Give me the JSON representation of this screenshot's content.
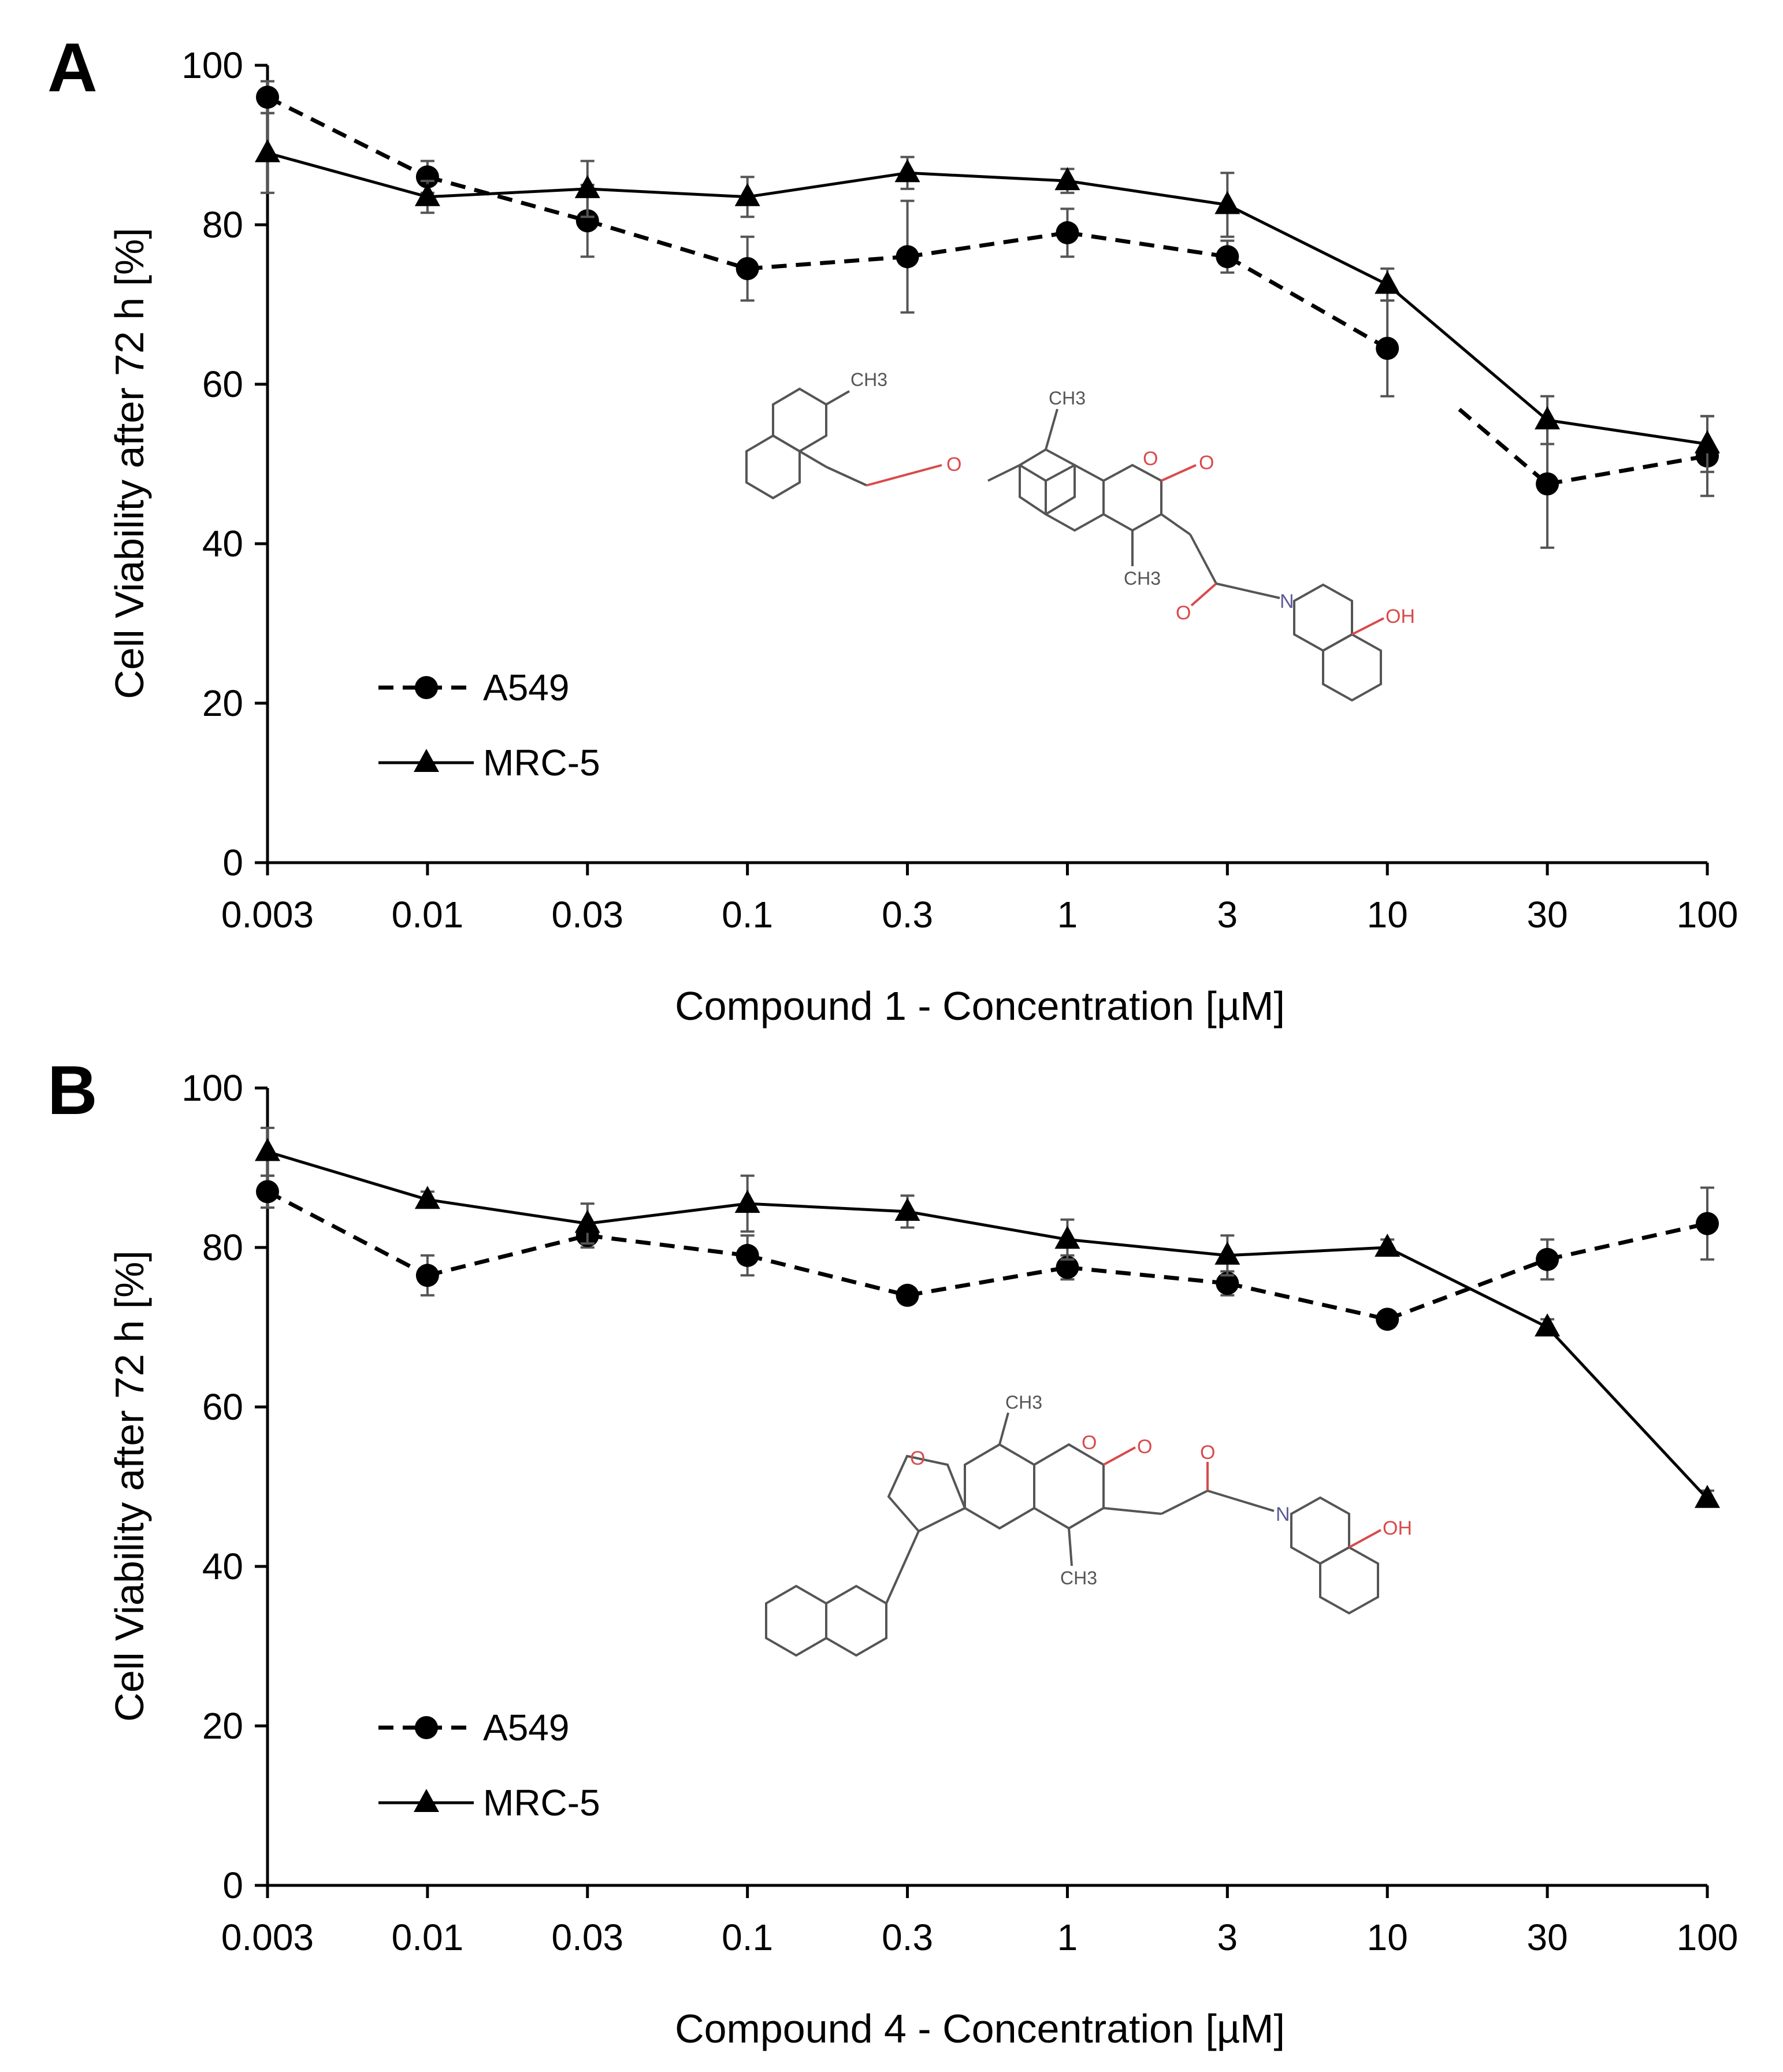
{
  "chart_data": [
    {
      "panel": "A",
      "type": "line",
      "xlabel": "Compound 1  - Concentration  [µM]",
      "ylabel": "Cell Viability after 72 h [%]",
      "categories": [
        "0.003",
        "0.01",
        "0.03",
        "0.1",
        "0.3",
        "1",
        "3",
        "10",
        "30",
        "100"
      ],
      "yticks": [
        "0",
        "20",
        "40",
        "60",
        "80",
        "100"
      ],
      "ylim": [
        0,
        100
      ],
      "legend": {
        "position": "bottom-left"
      },
      "series": [
        {
          "name": "A549",
          "marker": "circle",
          "style": "dashed",
          "values": [
            96,
            86,
            80.5,
            74.5,
            76,
            79,
            76,
            64.5,
            47.5,
            51
          ],
          "errors": [
            2,
            2,
            4.5,
            4,
            7,
            3,
            2,
            6,
            8,
            5
          ],
          "gap_after_index": 7
        },
        {
          "name": "MRC-5",
          "marker": "triangle",
          "style": "solid",
          "values": [
            89,
            83.5,
            84.5,
            83.5,
            86.5,
            85.5,
            82.5,
            72.5,
            55.5,
            52.5
          ],
          "errors": [
            5,
            2,
            3.5,
            2.5,
            2,
            1.5,
            4,
            2,
            3,
            3.5
          ]
        }
      ],
      "structure_labels": {
        "ch3_a": "CH3",
        "ch3_b": "CH3",
        "ch3_c": "CH3",
        "o_ring": "O",
        "o_carbonyl": "O",
        "o_ether": "O",
        "o_amide": "O",
        "n": "N",
        "oh": "OH"
      }
    },
    {
      "panel": "B",
      "type": "line",
      "xlabel": "Compound 4  - Concentration  [µM]",
      "ylabel": "Cell Viability after 72 h [%]",
      "categories": [
        "0.003",
        "0.01",
        "0.03",
        "0.1",
        "0.3",
        "1",
        "3",
        "10",
        "30",
        "100"
      ],
      "yticks": [
        "0",
        "20",
        "40",
        "60",
        "80",
        "100"
      ],
      "ylim": [
        0,
        100
      ],
      "legend": {
        "position": "bottom-left"
      },
      "series": [
        {
          "name": "A549",
          "marker": "circle",
          "style": "dashed",
          "values": [
            87,
            76.5,
            81.5,
            79,
            74,
            77.5,
            75.5,
            71,
            78.5,
            83
          ],
          "errors": [
            2,
            2.5,
            1.5,
            2.5,
            1,
            1.5,
            1.5,
            1,
            2.5,
            4.5
          ]
        },
        {
          "name": "MRC-5",
          "marker": "triangle",
          "style": "solid",
          "values": [
            92,
            86,
            83,
            85.5,
            84.5,
            81,
            79,
            80,
            70,
            48.5
          ],
          "errors": [
            3,
            1,
            2.5,
            3.5,
            2,
            2.5,
            2.5,
            1,
            1,
            1
          ]
        }
      ],
      "structure_labels": {
        "ch3_a": "CH3",
        "ch3_b": "CH3",
        "o_furan": "O",
        "o_ring": "O",
        "o_carbonyl": "O",
        "o_amide": "O",
        "n": "N",
        "oh": "OH"
      }
    }
  ]
}
